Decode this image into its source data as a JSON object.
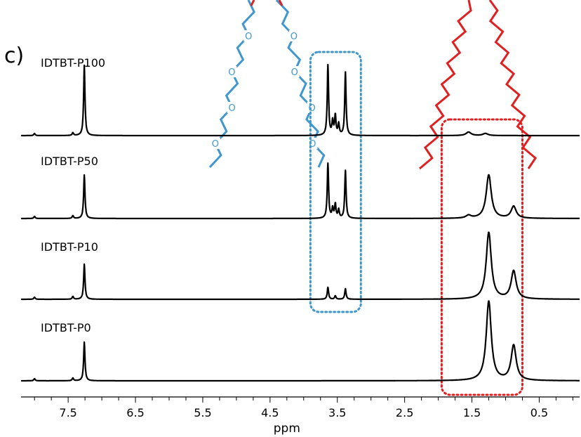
{
  "panel_label": "c)",
  "chart_data": {
    "type": "line",
    "title": "",
    "xlabel": "ppm",
    "ylabel": "",
    "x_reversed": true,
    "xlim": [
      8.2,
      -0.1
    ],
    "tick_labels": [
      "7.5",
      "6.5",
      "5.5",
      "4.5",
      "3.5",
      "2.5",
      "1.5",
      "0.5"
    ],
    "tick_values": [
      7.5,
      6.5,
      5.5,
      4.5,
      3.5,
      2.5,
      1.5,
      0.5
    ],
    "minor_tick_step": 0.25,
    "grid": false,
    "series": [
      {
        "name": "IDTBT-P100",
        "peaks": [
          {
            "ppm": 8.0,
            "height": 0.03
          },
          {
            "ppm": 7.43,
            "height": 0.04
          },
          {
            "ppm": 7.26,
            "height": 1.0
          },
          {
            "ppm": 3.64,
            "height": 1.0
          },
          {
            "ppm": 3.57,
            "height": 0.2
          },
          {
            "ppm": 3.53,
            "height": 0.28
          },
          {
            "ppm": 3.48,
            "height": 0.16
          },
          {
            "ppm": 3.38,
            "height": 0.9
          },
          {
            "ppm": 1.55,
            "height": 0.05
          },
          {
            "ppm": 1.3,
            "height": 0.03
          }
        ]
      },
      {
        "name": "IDTBT-P50",
        "peaks": [
          {
            "ppm": 8.0,
            "height": 0.03
          },
          {
            "ppm": 7.43,
            "height": 0.04
          },
          {
            "ppm": 7.26,
            "height": 0.62
          },
          {
            "ppm": 3.64,
            "height": 0.78
          },
          {
            "ppm": 3.57,
            "height": 0.14
          },
          {
            "ppm": 3.53,
            "height": 0.2
          },
          {
            "ppm": 3.48,
            "height": 0.12
          },
          {
            "ppm": 3.38,
            "height": 0.68
          },
          {
            "ppm": 1.55,
            "height": 0.04
          },
          {
            "ppm": 1.25,
            "height": 0.62
          },
          {
            "ppm": 0.88,
            "height": 0.17
          }
        ]
      },
      {
        "name": "IDTBT-P10",
        "peaks": [
          {
            "ppm": 8.0,
            "height": 0.03
          },
          {
            "ppm": 7.43,
            "height": 0.04
          },
          {
            "ppm": 7.26,
            "height": 0.5
          },
          {
            "ppm": 3.64,
            "height": 0.17
          },
          {
            "ppm": 3.53,
            "height": 0.05
          },
          {
            "ppm": 3.38,
            "height": 0.15
          },
          {
            "ppm": 1.25,
            "height": 0.95
          },
          {
            "ppm": 0.88,
            "height": 0.4
          }
        ]
      },
      {
        "name": "IDTBT-P0",
        "peaks": [
          {
            "ppm": 8.0,
            "height": 0.03
          },
          {
            "ppm": 7.43,
            "height": 0.04
          },
          {
            "ppm": 7.26,
            "height": 0.55
          },
          {
            "ppm": 1.25,
            "height": 1.13
          },
          {
            "ppm": 0.88,
            "height": 0.5
          }
        ]
      }
    ],
    "highlight_regions": [
      {
        "ppm_range": [
          3.9,
          3.15
        ],
        "color": "#3f97cf"
      },
      {
        "ppm_range": [
          1.95,
          0.75
        ],
        "color": "#e02020"
      }
    ],
    "chain_annotations": [
      {
        "type": "ethylene-glycol",
        "color": "#3f97cf",
        "label": "O"
      },
      {
        "type": "alkyl",
        "color": "#e02020"
      }
    ]
  }
}
